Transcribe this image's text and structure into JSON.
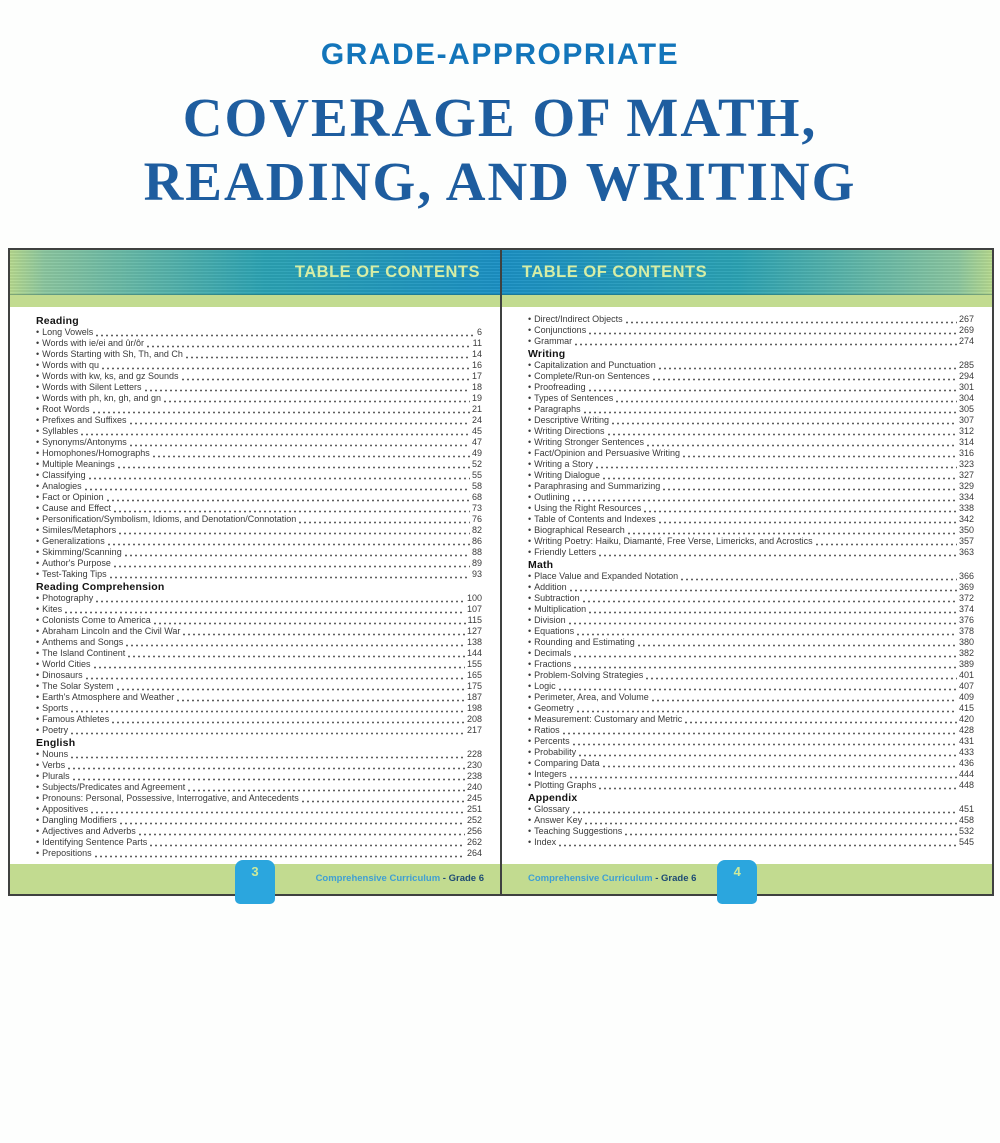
{
  "header": {
    "kicker": "GRADE-APPROPRIATE",
    "title_line1": "COVERAGE OF MATH,",
    "title_line2": "READING, AND WRITING"
  },
  "bullet_glyph": "•",
  "colors": {
    "heading_blue": "#1375ba",
    "title_blue": "#1e5d9f",
    "bar_blue": "#1b91c5",
    "bar_teal": "#2ba3b4",
    "bar_green": "#8cc7a0",
    "strip_green": "#c2db90",
    "tab_blue": "#2ba6de",
    "bar_text_green": "#d6eda5"
  },
  "pages": [
    {
      "side": "left",
      "toc_title": "TABLE OF CONTENTS",
      "page_number": "3",
      "footer": {
        "brand": "Comprehensive Curriculum",
        "separator": " - ",
        "edition": "Grade 6"
      },
      "sections": [
        {
          "title": "Reading",
          "items": [
            {
              "label": "Long Vowels",
              "page": "6"
            },
            {
              "label": "Words with ie/ei and ûr/ôr",
              "page": "11"
            },
            {
              "label": "Words Starting with Sh, Th, and Ch",
              "page": "14"
            },
            {
              "label": "Words with qu",
              "page": "16"
            },
            {
              "label": "Words with kw, ks, and gz Sounds",
              "page": "17"
            },
            {
              "label": "Words with Silent Letters",
              "page": "18"
            },
            {
              "label": "Words with ph, kn, gh, and gn",
              "page": "19"
            },
            {
              "label": "Root Words",
              "page": "21"
            },
            {
              "label": "Prefixes and Suffixes",
              "page": "24"
            },
            {
              "label": "Syllables",
              "page": "45"
            },
            {
              "label": "Synonyms/Antonyms",
              "page": "47"
            },
            {
              "label": "Homophones/Homographs",
              "page": "49"
            },
            {
              "label": "Multiple Meanings",
              "page": "52"
            },
            {
              "label": "Classifying",
              "page": "55"
            },
            {
              "label": "Analogies",
              "page": "58"
            },
            {
              "label": "Fact or Opinion",
              "page": "68"
            },
            {
              "label": "Cause and Effect",
              "page": "73"
            },
            {
              "label": "Personification/Symbolism, Idioms, and Denotation/Connotation",
              "page": "76"
            },
            {
              "label": "Similes/Metaphors",
              "page": "82"
            },
            {
              "label": "Generalizations",
              "page": "86"
            },
            {
              "label": "Skimming/Scanning",
              "page": "88"
            },
            {
              "label": "Author's Purpose",
              "page": "89"
            },
            {
              "label": "Test-Taking Tips",
              "page": "93"
            }
          ]
        },
        {
          "title": "Reading Comprehension",
          "items": [
            {
              "label": "Photography",
              "page": "100"
            },
            {
              "label": "Kites",
              "page": "107"
            },
            {
              "label": "Colonists Come to America",
              "page": "115"
            },
            {
              "label": "Abraham Lincoln and the Civil War",
              "page": "127"
            },
            {
              "label": "Anthems and Songs",
              "page": "138"
            },
            {
              "label": "The Island Continent",
              "page": "144"
            },
            {
              "label": "World Cities",
              "page": "155"
            },
            {
              "label": "Dinosaurs",
              "page": "165"
            },
            {
              "label": "The Solar System",
              "page": "175"
            },
            {
              "label": "Earth's Atmosphere and Weather",
              "page": "187"
            },
            {
              "label": "Sports",
              "page": "198"
            },
            {
              "label": "Famous Athletes",
              "page": "208"
            },
            {
              "label": "Poetry",
              "page": "217"
            }
          ]
        },
        {
          "title": "English",
          "items": [
            {
              "label": "Nouns",
              "page": "228"
            },
            {
              "label": "Verbs",
              "page": "230"
            },
            {
              "label": "Plurals",
              "page": "238"
            },
            {
              "label": "Subjects/Predicates and Agreement",
              "page": "240"
            },
            {
              "label": "Pronouns: Personal, Possessive, Interrogative, and Antecedents",
              "page": "245"
            },
            {
              "label": "Appositives",
              "page": "251"
            },
            {
              "label": "Dangling Modifiers",
              "page": "252"
            },
            {
              "label": "Adjectives and Adverbs",
              "page": "256"
            },
            {
              "label": "Identifying Sentence Parts",
              "page": "262"
            },
            {
              "label": "Prepositions",
              "page": "264"
            }
          ]
        }
      ]
    },
    {
      "side": "right",
      "toc_title": "TABLE OF CONTENTS",
      "page_number": "4",
      "footer": {
        "brand": "Comprehensive Curriculum",
        "separator": " - ",
        "edition": "Grade 6"
      },
      "sections": [
        {
          "title": "",
          "items": [
            {
              "label": "Direct/Indirect Objects",
              "page": "267"
            },
            {
              "label": "Conjunctions",
              "page": "269"
            },
            {
              "label": "Grammar",
              "page": "274"
            }
          ]
        },
        {
          "title": "Writing",
          "items": [
            {
              "label": "Capitalization and Punctuation",
              "page": "285"
            },
            {
              "label": "Complete/Run-on Sentences",
              "page": "294"
            },
            {
              "label": "Proofreading",
              "page": "301"
            },
            {
              "label": "Types of Sentences",
              "page": "304"
            },
            {
              "label": "Paragraphs",
              "page": "305"
            },
            {
              "label": "Descriptive Writing",
              "page": "307"
            },
            {
              "label": "Writing Directions",
              "page": "312"
            },
            {
              "label": "Writing Stronger Sentences",
              "page": "314"
            },
            {
              "label": "Fact/Opinion and Persuasive Writing",
              "page": "316"
            },
            {
              "label": "Writing a Story",
              "page": "323"
            },
            {
              "label": "Writing Dialogue",
              "page": "327"
            },
            {
              "label": "Paraphrasing and Summarizing",
              "page": "329"
            },
            {
              "label": "Outlining",
              "page": "334"
            },
            {
              "label": "Using the Right Resources",
              "page": "338"
            },
            {
              "label": "Table of Contents and Indexes",
              "page": "342"
            },
            {
              "label": "Biographical Research",
              "page": "350"
            },
            {
              "label": "Writing Poetry: Haiku, Diamanté, Free Verse, Limericks, and Acrostics",
              "page": "357"
            },
            {
              "label": "Friendly Letters",
              "page": "363"
            }
          ]
        },
        {
          "title": "Math",
          "items": [
            {
              "label": "Place Value and Expanded Notation",
              "page": "366"
            },
            {
              "label": "Addition",
              "page": "369"
            },
            {
              "label": "Subtraction",
              "page": "372"
            },
            {
              "label": "Multiplication",
              "page": "374"
            },
            {
              "label": "Division",
              "page": "376"
            },
            {
              "label": "Equations",
              "page": "378"
            },
            {
              "label": "Rounding and Estimating",
              "page": "380"
            },
            {
              "label": "Decimals",
              "page": "382"
            },
            {
              "label": "Fractions",
              "page": "389"
            },
            {
              "label": "Problem-Solving Strategies",
              "page": "401"
            },
            {
              "label": "Logic",
              "page": "407"
            },
            {
              "label": "Perimeter, Area, and Volume",
              "page": "409"
            },
            {
              "label": "Geometry",
              "page": "415"
            },
            {
              "label": "Measurement: Customary and Metric",
              "page": "420"
            },
            {
              "label": "Ratios",
              "page": "428"
            },
            {
              "label": "Percents",
              "page": "431"
            },
            {
              "label": "Probability",
              "page": "433"
            },
            {
              "label": "Comparing Data",
              "page": "436"
            },
            {
              "label": "Integers",
              "page": "444"
            },
            {
              "label": "Plotting Graphs",
              "page": "448"
            }
          ]
        },
        {
          "title": "Appendix",
          "items": [
            {
              "label": "Glossary",
              "page": "451"
            },
            {
              "label": "Answer Key",
              "page": "458"
            },
            {
              "label": "Teaching Suggestions",
              "page": "532"
            },
            {
              "label": "Index",
              "page": "545"
            }
          ]
        }
      ]
    }
  ]
}
